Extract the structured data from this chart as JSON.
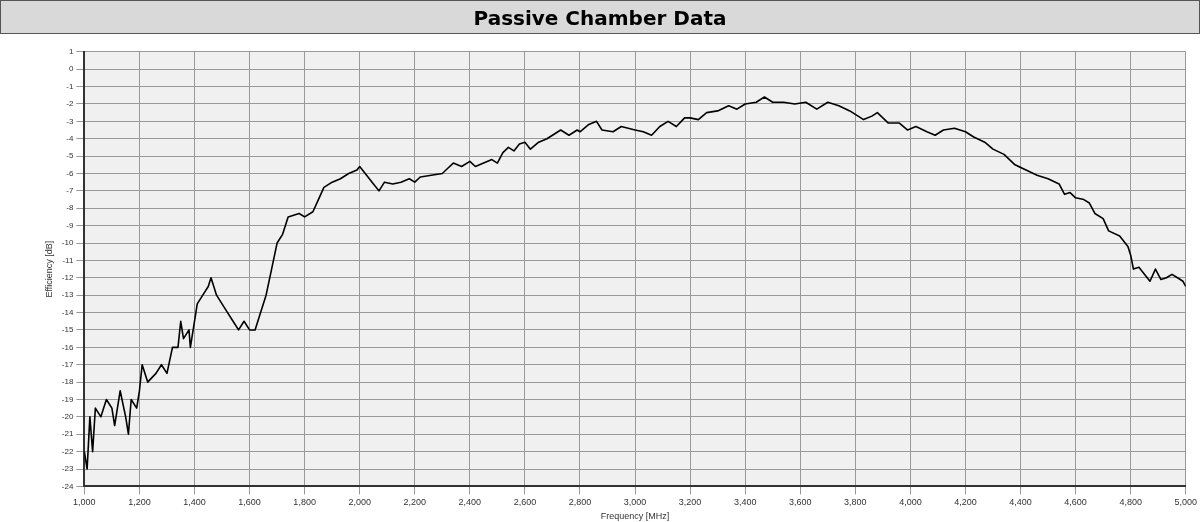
{
  "chart_data": {
    "type": "line",
    "title": "Passive Chamber Data",
    "xlabel": "Frequency [MHz]",
    "ylabel": "Efficiency [dB]",
    "x": [
      1000,
      1010,
      1020,
      1030,
      1040,
      1060,
      1080,
      1100,
      1110,
      1130,
      1150,
      1160,
      1170,
      1190,
      1200,
      1210,
      1230,
      1260,
      1280,
      1300,
      1320,
      1340,
      1350,
      1360,
      1380,
      1385,
      1400,
      1410,
      1430,
      1450,
      1460,
      1480,
      1500,
      1520,
      1540,
      1560,
      1580,
      1600,
      1620,
      1640,
      1660,
      1680,
      1700,
      1720,
      1740,
      1780,
      1800,
      1830,
      1850,
      1870,
      1900,
      1930,
      1960,
      1990,
      2000,
      2020,
      2050,
      2070,
      2090,
      2120,
      2150,
      2180,
      2200,
      2220,
      2260,
      2300,
      2320,
      2340,
      2370,
      2400,
      2420,
      2450,
      2480,
      2500,
      2520,
      2540,
      2560,
      2580,
      2600,
      2620,
      2650,
      2680,
      2700,
      2730,
      2760,
      2790,
      2800,
      2830,
      2860,
      2880,
      2920,
      2950,
      3000,
      3030,
      3060,
      3090,
      3120,
      3150,
      3180,
      3200,
      3230,
      3260,
      3300,
      3340,
      3370,
      3400,
      3440,
      3470,
      3500,
      3540,
      3580,
      3620,
      3660,
      3700,
      3740,
      3780,
      3800,
      3830,
      3860,
      3880,
      3920,
      3960,
      3990,
      4020,
      4060,
      4090,
      4120,
      4160,
      4200,
      4230,
      4270,
      4300,
      4340,
      4380,
      4420,
      4460,
      4500,
      4540,
      4560,
      4580,
      4600,
      4630,
      4650,
      4670,
      4700,
      4720,
      4760,
      4790,
      4800,
      4810,
      4830,
      4850,
      4870,
      4890,
      4910,
      4930,
      4950,
      4970,
      4990,
      5000
    ],
    "series": [
      {
        "color": "#000000",
        "values": [
          -22,
          -23,
          -20,
          -22,
          -19.5,
          -20,
          -19,
          -19.5,
          -20.5,
          -18.5,
          -20,
          -21,
          -19,
          -19.5,
          -18.5,
          -17,
          -18,
          -17.5,
          -17,
          -17.5,
          -16,
          -16,
          -14.5,
          -15.5,
          -15,
          -16,
          -14.5,
          -13.5,
          -13,
          -12.5,
          -12,
          -13,
          -13.5,
          -14,
          -14.5,
          -15,
          -14.5,
          -15,
          -15,
          -14,
          -13,
          -11.5,
          -10,
          -9.5,
          -8.5,
          -8.3,
          -8.5,
          -8.2,
          -7.5,
          -6.8,
          -6.5,
          -6.3,
          -6,
          -5.8,
          -5.6,
          -6,
          -6.6,
          -7,
          -6.5,
          -6.6,
          -6.5,
          -6.3,
          -6.5,
          -6.2,
          -6.1,
          -6,
          -5.7,
          -5.4,
          -5.6,
          -5.3,
          -5.6,
          -5.4,
          -5.2,
          -5.4,
          -4.8,
          -4.5,
          -4.7,
          -4.3,
          -4.2,
          -4.6,
          -4.2,
          -4,
          -3.8,
          -3.5,
          -3.8,
          -3.5,
          -3.6,
          -3.2,
          -3,
          -3.5,
          -3.6,
          -3.3,
          -3.5,
          -3.6,
          -3.8,
          -3.3,
          -3,
          -3.3,
          -2.8,
          -2.8,
          -2.9,
          -2.5,
          -2.4,
          -2.1,
          -2.3,
          -2,
          -1.9,
          -1.6,
          -1.9,
          -1.9,
          -2,
          -1.9,
          -2.3,
          -1.9,
          -2.1,
          -2.4,
          -2.6,
          -2.9,
          -2.7,
          -2.5,
          -3.1,
          -3.1,
          -3.5,
          -3.3,
          -3.6,
          -3.8,
          -3.5,
          -3.4,
          -3.6,
          -3.9,
          -4.2,
          -4.6,
          -4.9,
          -5.5,
          -5.8,
          -6.1,
          -6.3,
          -6.6,
          -7.2,
          -7.1,
          -7.4,
          -7.5,
          -7.7,
          -8.3,
          -8.6,
          -9.3,
          -9.6,
          -10.2,
          -10.7,
          -11.5,
          -11.4,
          -11.8,
          -12.2,
          -11.5,
          -12.1,
          -12,
          -11.8,
          -12,
          -12.2,
          -12.5
        ]
      }
    ],
    "xlim": [
      1000,
      5000
    ],
    "xticks": [
      {
        "value": 1000,
        "label": "1,000"
      },
      {
        "value": 1200,
        "label": "1,200"
      },
      {
        "value": 1400,
        "label": "1,400"
      },
      {
        "value": 1600,
        "label": "1,600"
      },
      {
        "value": 1800,
        "label": "1,800"
      },
      {
        "value": 2000,
        "label": "2,000"
      },
      {
        "value": 2200,
        "label": "2,200"
      },
      {
        "value": 2400,
        "label": "2,400"
      },
      {
        "value": 2600,
        "label": "2,600"
      },
      {
        "value": 2800,
        "label": "2,800"
      },
      {
        "value": 3000,
        "label": "3,000"
      },
      {
        "value": 3200,
        "label": "3,200"
      },
      {
        "value": 3400,
        "label": "3,400"
      },
      {
        "value": 3600,
        "label": "3,600"
      },
      {
        "value": 3800,
        "label": "3,800"
      },
      {
        "value": 4000,
        "label": "4,000"
      },
      {
        "value": 4200,
        "label": "4,200"
      },
      {
        "value": 4400,
        "label": "4,400"
      },
      {
        "value": 4600,
        "label": "4,600"
      },
      {
        "value": 4800,
        "label": "4,800"
      },
      {
        "value": 5000,
        "label": "5,000"
      }
    ],
    "ylim": [
      -24,
      1
    ],
    "yticks": [
      -24,
      -23,
      -22,
      -21,
      -20,
      -19,
      -18,
      -17,
      -16,
      -15,
      -14,
      -13,
      -12,
      -11,
      -10,
      -9,
      -8,
      -7,
      -6,
      -5,
      -4,
      -3,
      -2,
      -1,
      0,
      1
    ],
    "grid": true,
    "marker": "none",
    "line_style": "solid"
  }
}
